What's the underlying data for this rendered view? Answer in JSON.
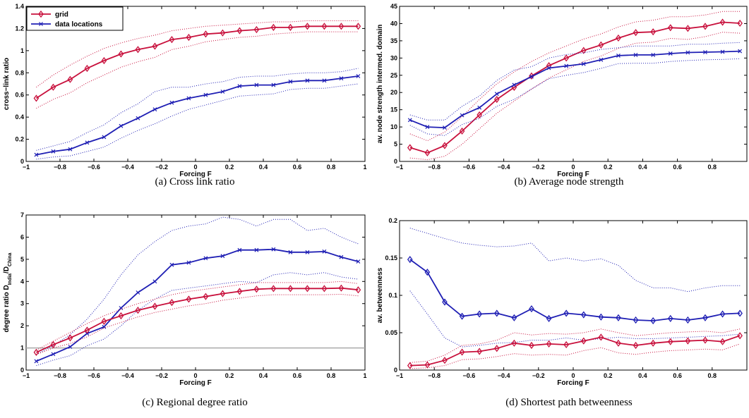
{
  "colors": {
    "red": "#c8103c",
    "blue": "#1f1fb4",
    "refline": "#aaaaaa"
  },
  "legend": {
    "items": [
      "grid",
      "data locations"
    ]
  },
  "chart_data": [
    {
      "type": "line",
      "caption": "(a) Cross link ratio",
      "xlabel": "Forcing F",
      "ylabel": "cross−link ratio",
      "xlim": [
        -1,
        1
      ],
      "ylim": [
        0,
        1.4
      ],
      "xticks": [
        -1,
        -0.8,
        -0.6,
        -0.4,
        -0.2,
        0,
        0.2,
        0.4,
        0.6,
        0.8,
        1
      ],
      "xtick_labels": [
        "−1",
        "−0.8",
        "−0.6",
        "−0.4",
        "−0.2",
        "0",
        "0.2",
        "0.4",
        "0.6",
        "0.8",
        "1"
      ],
      "yticks": [
        0,
        0.2,
        0.4,
        0.6,
        0.8,
        1,
        1.2,
        1.4
      ],
      "ytick_labels": [
        "0",
        "0.2",
        "0.4",
        "0.6",
        "0.8",
        "1",
        "1.2",
        "1.4"
      ],
      "legend": true,
      "x": [
        -0.94,
        -0.84,
        -0.74,
        -0.64,
        -0.54,
        -0.44,
        -0.34,
        -0.24,
        -0.14,
        -0.04,
        0.06,
        0.16,
        0.26,
        0.36,
        0.46,
        0.56,
        0.66,
        0.76,
        0.86,
        0.96
      ],
      "series": [
        {
          "name": "grid",
          "color": "red",
          "marker": "diamond",
          "values": [
            0.57,
            0.67,
            0.74,
            0.84,
            0.91,
            0.97,
            1.01,
            1.04,
            1.1,
            1.12,
            1.15,
            1.16,
            1.18,
            1.19,
            1.21,
            1.21,
            1.22,
            1.22,
            1.22,
            1.22
          ],
          "upper": [
            0.67,
            0.78,
            0.87,
            0.95,
            1.02,
            1.07,
            1.11,
            1.14,
            1.18,
            1.2,
            1.22,
            1.23,
            1.24,
            1.25,
            1.26,
            1.26,
            1.27,
            1.27,
            1.27,
            1.27
          ],
          "lower": [
            0.48,
            0.56,
            0.62,
            0.71,
            0.78,
            0.85,
            0.9,
            0.94,
            1.01,
            1.04,
            1.08,
            1.1,
            1.12,
            1.13,
            1.15,
            1.16,
            1.17,
            1.17,
            1.17,
            1.17
          ]
        },
        {
          "name": "data locations",
          "color": "blue",
          "marker": "x",
          "values": [
            0.06,
            0.09,
            0.11,
            0.17,
            0.22,
            0.32,
            0.39,
            0.47,
            0.53,
            0.57,
            0.6,
            0.63,
            0.68,
            0.69,
            0.69,
            0.72,
            0.73,
            0.73,
            0.75,
            0.77
          ],
          "upper": [
            0.1,
            0.14,
            0.18,
            0.26,
            0.33,
            0.44,
            0.52,
            0.63,
            0.67,
            0.67,
            0.7,
            0.72,
            0.76,
            0.77,
            0.77,
            0.79,
            0.8,
            0.8,
            0.81,
            0.84
          ],
          "lower": [
            0.02,
            0.04,
            0.05,
            0.09,
            0.13,
            0.21,
            0.28,
            0.34,
            0.41,
            0.47,
            0.51,
            0.55,
            0.59,
            0.6,
            0.61,
            0.65,
            0.66,
            0.66,
            0.68,
            0.7
          ]
        }
      ]
    },
    {
      "type": "line",
      "caption": "(b) Average node strength",
      "xlabel": "Forcing F",
      "ylabel": "av. node strength intermed. domain",
      "xlim": [
        -1,
        1
      ],
      "ylim": [
        0,
        45
      ],
      "xticks": [
        -1,
        -0.8,
        -0.6,
        -0.4,
        -0.2,
        0,
        0.2,
        0.4,
        0.6,
        0.8
      ],
      "xtick_labels": [
        "−1",
        "−0.8",
        "−0.6",
        "−0.4",
        "−0.2",
        "0",
        "0.2",
        "0.4",
        "0.6",
        "0.8"
      ],
      "yticks": [
        0,
        5,
        10,
        15,
        20,
        25,
        30,
        35,
        40,
        45
      ],
      "ytick_labels": [
        "0",
        "5",
        "10",
        "15",
        "20",
        "25",
        "30",
        "35",
        "40",
        "45"
      ],
      "legend": false,
      "x": [
        -0.94,
        -0.84,
        -0.74,
        -0.64,
        -0.54,
        -0.44,
        -0.34,
        -0.24,
        -0.14,
        -0.04,
        0.06,
        0.16,
        0.26,
        0.36,
        0.46,
        0.56,
        0.66,
        0.76,
        0.86,
        0.96
      ],
      "series": [
        {
          "name": "grid",
          "color": "red",
          "marker": "diamond",
          "values": [
            4,
            2.5,
            4.6,
            8.8,
            13.5,
            18,
            21.5,
            24.8,
            27.8,
            30,
            32.2,
            33.8,
            35.8,
            37.4,
            37.6,
            38.8,
            38.6,
            39.2,
            40.4,
            40.1
          ],
          "upper": [
            8,
            6,
            8.5,
            13,
            18,
            22.5,
            26,
            29,
            31.5,
            33.5,
            35.5,
            37,
            39,
            40.5,
            41,
            42,
            42,
            42.5,
            43.5,
            43.5
          ],
          "lower": [
            1,
            0.5,
            1.5,
            5,
            9.5,
            14,
            17.5,
            21,
            24.2,
            26.6,
            29,
            30.6,
            32.8,
            34.3,
            34.6,
            35.7,
            35.4,
            36.2,
            37.5,
            37.2
          ]
        },
        {
          "name": "data locations",
          "color": "blue",
          "marker": "x",
          "values": [
            12,
            10,
            9.8,
            13.4,
            15.6,
            19.6,
            22.2,
            24.6,
            27.1,
            27.7,
            28.3,
            29.5,
            30.7,
            30.9,
            30.9,
            31.3,
            31.6,
            31.7,
            31.8,
            32
          ],
          "upper": [
            13.5,
            12,
            12,
            16,
            19,
            23.5,
            26.5,
            27.5,
            30,
            31,
            31.5,
            32.5,
            33,
            33.5,
            33.5,
            33.5,
            34,
            34,
            34.3,
            34.5
          ],
          "lower": [
            10.5,
            8,
            7.5,
            10.7,
            12.5,
            16,
            18,
            21,
            24,
            25,
            25.8,
            27,
            28.4,
            28.5,
            28.5,
            29,
            29.3,
            29.5,
            29.6,
            29.8
          ]
        }
      ]
    },
    {
      "type": "line",
      "caption": "(c) Regional degree ratio",
      "xlabel": "Forcing F",
      "ylabel": "degree ratio D",
      "ylabel_sub1": "India",
      "ylabel_mid": "/D",
      "ylabel_sub2": "China",
      "xlim": [
        -1,
        1
      ],
      "ylim": [
        0,
        7
      ],
      "xticks": [
        -1,
        -0.8,
        -0.6,
        -0.4,
        -0.2,
        0,
        0.2,
        0.4,
        0.6,
        0.8,
        1
      ],
      "xtick_labels": [
        "−1",
        "−0.8",
        "−0.6",
        "−0.4",
        "−0.2",
        "0",
        "0.2",
        "0.4",
        "0.6",
        "0.8",
        "1"
      ],
      "yticks": [
        0,
        1,
        2,
        3,
        4,
        5,
        6,
        7
      ],
      "ytick_labels": [
        "0",
        "1",
        "2",
        "3",
        "4",
        "5",
        "6",
        "7"
      ],
      "legend": false,
      "hline": 1,
      "x": [
        -0.94,
        -0.84,
        -0.74,
        -0.64,
        -0.54,
        -0.44,
        -0.34,
        -0.24,
        -0.14,
        -0.04,
        0.06,
        0.16,
        0.26,
        0.36,
        0.46,
        0.56,
        0.66,
        0.76,
        0.86,
        0.96
      ],
      "series": [
        {
          "name": "data locations",
          "color": "blue",
          "marker": "x",
          "values": [
            0.4,
            0.72,
            1.05,
            1.65,
            1.95,
            2.8,
            3.5,
            4,
            4.75,
            4.85,
            5.05,
            5.15,
            5.42,
            5.42,
            5.45,
            5.32,
            5.32,
            5.35,
            5.1,
            4.9
          ],
          "upper": [
            0.7,
            1.1,
            1.6,
            2.3,
            3.2,
            4.3,
            5.2,
            5.8,
            6.3,
            6.5,
            6.6,
            6.9,
            6.8,
            6.5,
            6.8,
            6.8,
            6.3,
            6.4,
            6,
            5.7
          ],
          "lower": [
            0.2,
            0.45,
            0.65,
            1.1,
            1.4,
            2,
            2.7,
            3.2,
            3.6,
            3.7,
            3.8,
            3.9,
            4,
            3.95,
            4.3,
            4.4,
            4.3,
            4.4,
            4.2,
            4.1
          ]
        },
        {
          "name": "grid",
          "color": "red",
          "marker": "diamond",
          "values": [
            0.8,
            1.15,
            1.45,
            1.8,
            2.2,
            2.45,
            2.7,
            2.88,
            3.05,
            3.2,
            3.32,
            3.45,
            3.55,
            3.65,
            3.68,
            3.68,
            3.68,
            3.68,
            3.7,
            3.62
          ],
          "upper": [
            0.9,
            1.3,
            1.7,
            2.1,
            2.45,
            2.75,
            3,
            3.2,
            3.4,
            3.55,
            3.65,
            3.75,
            3.85,
            3.95,
            3.95,
            3.95,
            3.95,
            3.95,
            4,
            3.9
          ],
          "lower": [
            0.7,
            1,
            1.2,
            1.5,
            1.9,
            2.15,
            2.4,
            2.6,
            2.75,
            2.9,
            3,
            3.15,
            3.25,
            3.35,
            3.4,
            3.4,
            3.4,
            3.4,
            3.42,
            3.35
          ]
        }
      ]
    },
    {
      "type": "line",
      "caption": "(d) Shortest path betweenness",
      "xlabel": "Forcing F",
      "ylabel": "av. betweenness",
      "xlim": [
        -1,
        1
      ],
      "ylim": [
        0,
        0.2
      ],
      "xticks": [
        -1,
        -0.8,
        -0.6,
        -0.4,
        -0.2,
        0,
        0.2,
        0.4,
        0.6,
        0.8
      ],
      "xtick_labels": [
        "−1",
        "−0.8",
        "−0.6",
        "−0.4",
        "−0.2",
        "0",
        "0.2",
        "0.4",
        "0.6",
        "0.8"
      ],
      "yticks": [
        0,
        0.05,
        0.1,
        0.15,
        0.2
      ],
      "ytick_labels": [
        "0",
        "0.05",
        "0.1",
        "0.15",
        "0.2"
      ],
      "legend": false,
      "x": [
        -0.94,
        -0.84,
        -0.74,
        -0.64,
        -0.54,
        -0.44,
        -0.34,
        -0.24,
        -0.14,
        -0.04,
        0.06,
        0.16,
        0.26,
        0.36,
        0.46,
        0.56,
        0.66,
        0.76,
        0.86,
        0.96
      ],
      "series": [
        {
          "name": "data locations",
          "color": "blue",
          "marker": "diamond",
          "values": [
            0.148,
            0.131,
            0.091,
            0.072,
            0.075,
            0.076,
            0.07,
            0.082,
            0.069,
            0.076,
            0.074,
            0.071,
            0.07,
            0.067,
            0.066,
            0.069,
            0.067,
            0.07,
            0.075,
            0.076
          ],
          "upper": [
            0.19,
            0.183,
            0.176,
            0.17,
            0.167,
            0.165,
            0.166,
            0.17,
            0.146,
            0.15,
            0.146,
            0.149,
            0.14,
            0.12,
            0.11,
            0.11,
            0.105,
            0.11,
            0.113,
            0.113
          ],
          "lower": [
            0.106,
            0.075,
            0.043,
            0.031,
            0.033,
            0.036,
            0.037,
            0.04,
            0.04,
            0.043,
            0.04,
            0.042,
            0.044,
            0.042,
            0.042,
            0.043,
            0.044,
            0.045,
            0.046,
            0.048
          ]
        },
        {
          "name": "grid",
          "color": "red",
          "marker": "diamond",
          "values": [
            0.006,
            0.007,
            0.013,
            0.024,
            0.025,
            0.029,
            0.036,
            0.033,
            0.035,
            0.034,
            0.039,
            0.044,
            0.036,
            0.033,
            0.036,
            0.038,
            0.039,
            0.04,
            0.038,
            0.046
          ],
          "upper": [
            0.01,
            0.012,
            0.02,
            0.033,
            0.035,
            0.04,
            0.05,
            0.047,
            0.049,
            0.048,
            0.05,
            0.055,
            0.05,
            0.046,
            0.048,
            0.05,
            0.051,
            0.052,
            0.05,
            0.055
          ],
          "lower": [
            0.002,
            0.003,
            0.006,
            0.014,
            0.015,
            0.018,
            0.022,
            0.02,
            0.021,
            0.02,
            0.026,
            0.03,
            0.023,
            0.021,
            0.024,
            0.026,
            0.027,
            0.028,
            0.027,
            0.035
          ]
        }
      ]
    }
  ]
}
